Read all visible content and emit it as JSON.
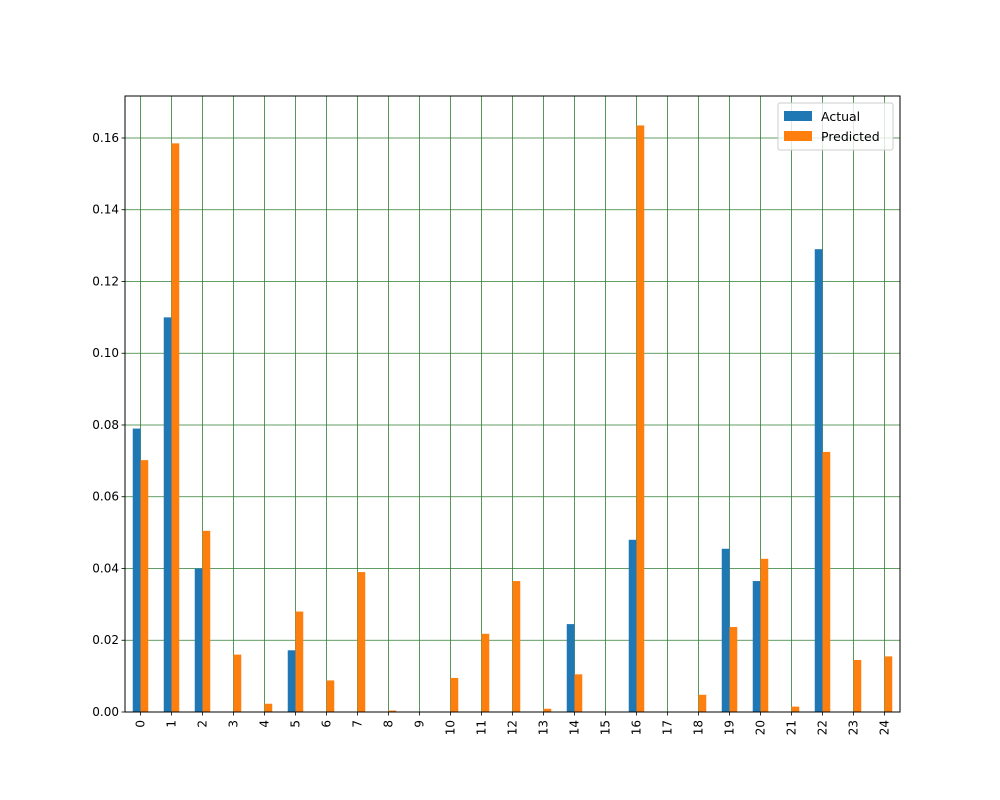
{
  "chart_data": {
    "type": "bar",
    "categories": [
      "0",
      "1",
      "2",
      "3",
      "4",
      "5",
      "6",
      "7",
      "8",
      "9",
      "10",
      "11",
      "12",
      "13",
      "14",
      "15",
      "16",
      "17",
      "18",
      "19",
      "20",
      "21",
      "22",
      "23",
      "24"
    ],
    "series": [
      {
        "name": "Actual",
        "color": "#1f77b4",
        "values": [
          0.079,
          0.11,
          0.04,
          0,
          0,
          0.0172,
          0,
          0,
          0,
          0,
          0,
          0,
          0,
          0,
          0.0245,
          0,
          0.048,
          0,
          0,
          0.0455,
          0.0365,
          0,
          0.129,
          0,
          0
        ]
      },
      {
        "name": "Predicted",
        "color": "#ff7f0e",
        "values": [
          0.0702,
          0.1585,
          0.0505,
          0.016,
          0.0023,
          0.028,
          0.0088,
          0.039,
          0.0004,
          0,
          0.0095,
          0.0218,
          0.0365,
          0.0009,
          0.0105,
          0,
          0.1635,
          0,
          0.0048,
          0.0237,
          0.0427,
          0.0015,
          0.0725,
          0.0145,
          0.0155
        ]
      }
    ],
    "yticks": [
      "0.00",
      "0.02",
      "0.04",
      "0.06",
      "0.08",
      "0.10",
      "0.12",
      "0.14",
      "0.16"
    ],
    "ylim": [
      0,
      0.1717
    ],
    "grid": true,
    "grid_color": "#2e7d32",
    "legend_position": "top-right",
    "xlabel": "",
    "ylabel": "",
    "title": ""
  }
}
